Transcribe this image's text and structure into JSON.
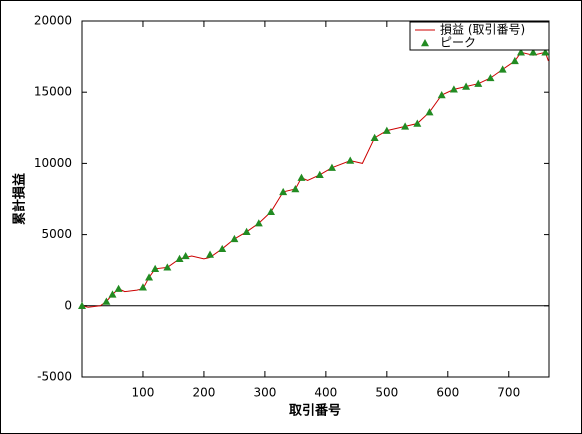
{
  "chart_data": {
    "type": "line",
    "x_label": "取引番号",
    "y_label": "累計損益",
    "xlim": [
      0,
      766
    ],
    "ylim": [
      -5000,
      20000
    ],
    "xticks": [
      100,
      200,
      300,
      400,
      500,
      600,
      700
    ],
    "yticks": [
      -5000,
      0,
      5000,
      10000,
      15000,
      20000
    ],
    "zero_line": true,
    "legend": "top-right",
    "series": [
      {
        "name": "損益 (取引番号)",
        "color": "#cc0000",
        "marker": "line",
        "x": [
          0,
          10,
          30,
          40,
          50,
          60,
          70,
          90,
          100,
          110,
          120,
          140,
          160,
          180,
          200,
          210,
          230,
          250,
          270,
          290,
          310,
          330,
          350,
          360,
          370,
          390,
          410,
          440,
          460,
          480,
          500,
          530,
          550,
          570,
          590,
          610,
          630,
          650,
          670,
          690,
          710,
          720,
          740,
          760,
          765
        ],
        "values": [
          0,
          -100,
          0,
          300,
          800,
          1200,
          1000,
          1100,
          1200,
          2000,
          2600,
          2700,
          3300,
          3500,
          3300,
          3400,
          4000,
          4700,
          5200,
          5800,
          6600,
          8000,
          8200,
          9000,
          8800,
          9200,
          9700,
          10200,
          10000,
          11800,
          12300,
          12600,
          12800,
          13600,
          14800,
          15200,
          15400,
          15600,
          16000,
          16600,
          17200,
          17800,
          17600,
          17800,
          17200
        ]
      },
      {
        "name": "ピーク",
        "color": "#228b22",
        "marker": "triangle",
        "x": [
          0,
          40,
          50,
          60,
          100,
          110,
          120,
          140,
          160,
          170,
          210,
          230,
          250,
          270,
          290,
          310,
          330,
          350,
          360,
          390,
          410,
          440,
          480,
          500,
          530,
          550,
          570,
          590,
          610,
          630,
          650,
          670,
          690,
          710,
          720,
          740,
          760
        ],
        "values": [
          0,
          300,
          800,
          1200,
          1300,
          2000,
          2600,
          2700,
          3300,
          3500,
          3600,
          4000,
          4700,
          5200,
          5800,
          6600,
          8000,
          8200,
          9000,
          9200,
          9700,
          10200,
          11800,
          12300,
          12600,
          12800,
          13600,
          14800,
          15200,
          15400,
          15600,
          16000,
          16600,
          17200,
          17800,
          17800,
          17800
        ]
      }
    ]
  }
}
